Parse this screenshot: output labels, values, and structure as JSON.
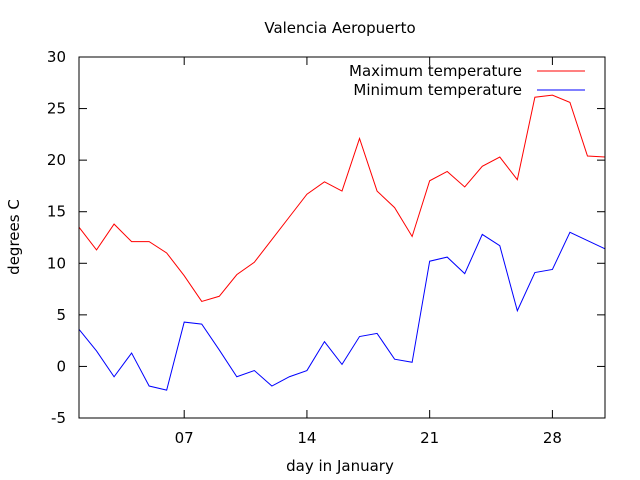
{
  "chart_data": {
    "type": "line",
    "title": "Valencia Aeropuerto",
    "xlabel": "day in January",
    "ylabel": "degrees C",
    "xlim": [
      1,
      31
    ],
    "ylim": [
      -5,
      30
    ],
    "x": [
      1,
      2,
      3,
      4,
      5,
      6,
      7,
      8,
      9,
      10,
      11,
      12,
      13,
      14,
      15,
      16,
      17,
      18,
      19,
      20,
      21,
      22,
      23,
      24,
      25,
      26,
      27,
      28,
      29,
      30,
      31
    ],
    "x_ticks": [
      {
        "value": 7,
        "label": "07"
      },
      {
        "value": 14,
        "label": "14"
      },
      {
        "value": 21,
        "label": "21"
      },
      {
        "value": 28,
        "label": "28"
      }
    ],
    "y_ticks": [
      -5,
      0,
      5,
      10,
      15,
      20,
      25,
      30
    ],
    "legend": "top-right",
    "grid": false,
    "series": [
      {
        "name": "Maximum temperature",
        "color": "#ff0000",
        "values": [
          13.5,
          11.3,
          13.8,
          12.1,
          12.1,
          11.0,
          8.8,
          6.3,
          6.8,
          8.9,
          10.1,
          12.3,
          14.5,
          16.7,
          17.9,
          17.0,
          22.1,
          17.0,
          15.4,
          12.6,
          18.0,
          18.9,
          17.4,
          19.4,
          20.3,
          18.1,
          26.1,
          26.3,
          25.6,
          20.4,
          20.3
        ]
      },
      {
        "name": "Minimum temperature",
        "color": "#0000ff",
        "values": [
          3.6,
          1.5,
          -1.0,
          1.3,
          -1.9,
          -2.3,
          4.3,
          4.1,
          1.6,
          -1.0,
          -0.4,
          -1.9,
          -1.0,
          -0.4,
          2.4,
          0.2,
          2.9,
          3.2,
          0.7,
          0.4,
          10.2,
          10.6,
          9.0,
          12.8,
          11.7,
          5.4,
          9.1,
          9.4,
          13.0,
          12.2,
          11.4
        ]
      }
    ]
  }
}
